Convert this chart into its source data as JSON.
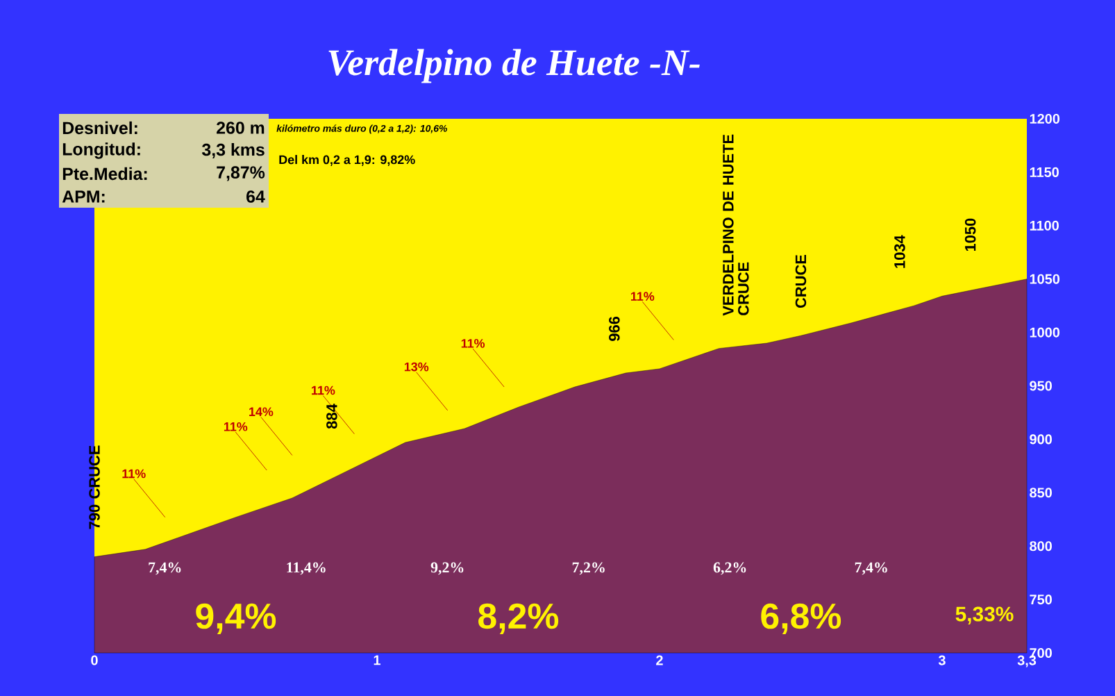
{
  "chart_data": {
    "type": "area",
    "title": "Verdelpino de Huete -N-",
    "x": [
      0,
      0.18,
      0.5,
      0.7,
      1.0,
      1.1,
      1.31,
      1.5,
      1.7,
      1.88,
      2.0,
      2.21,
      2.38,
      2.5,
      2.68,
      2.9,
      3.0,
      3.3
    ],
    "values": [
      790,
      797,
      827,
      845,
      884,
      897,
      910,
      930,
      949,
      962,
      966,
      985,
      990,
      997,
      1009,
      1025,
      1034,
      1050
    ],
    "color": "#7b2d5b",
    "xlim": [
      0,
      3.3
    ],
    "ylim": [
      700,
      1200
    ],
    "xticks": [
      0,
      1,
      2,
      3,
      {
        "value": 3.3,
        "label": "3,3"
      }
    ],
    "yticks": [
      700,
      750,
      800,
      850,
      900,
      950,
      1000,
      1050,
      1100,
      1150,
      1200
    ],
    "annotations": [
      "Desnivel:",
      "260 m",
      "Longitud:",
      "3,3 kms",
      "Pte.Media:",
      "7,87%",
      "APM:",
      "64",
      "kilómetro más duro (0,2 a 1,2):  10,6%",
      "Del km 0,2 a 1,9: 9,82%",
      "11%",
      "11%",
      "14%",
      "11%",
      "13%",
      "11%",
      "11%",
      {
        "text": "790 CRUCE",
        "x": 0,
        "y": 790
      },
      "884",
      "966",
      {
        "text": "VERDELPINO DE HUETE CRUCE",
        "x": 2.27,
        "y": 990
      },
      {
        "text": "CRUCE",
        "x": 2.5,
        "y": 997
      },
      "1034",
      "1050",
      "7,4%",
      "11,4%",
      "9,2%",
      "7,2%",
      "6,2%",
      "7,4%",
      "9,4%",
      "8,2%",
      "6,8%",
      "5,33%"
    ]
  }
}
